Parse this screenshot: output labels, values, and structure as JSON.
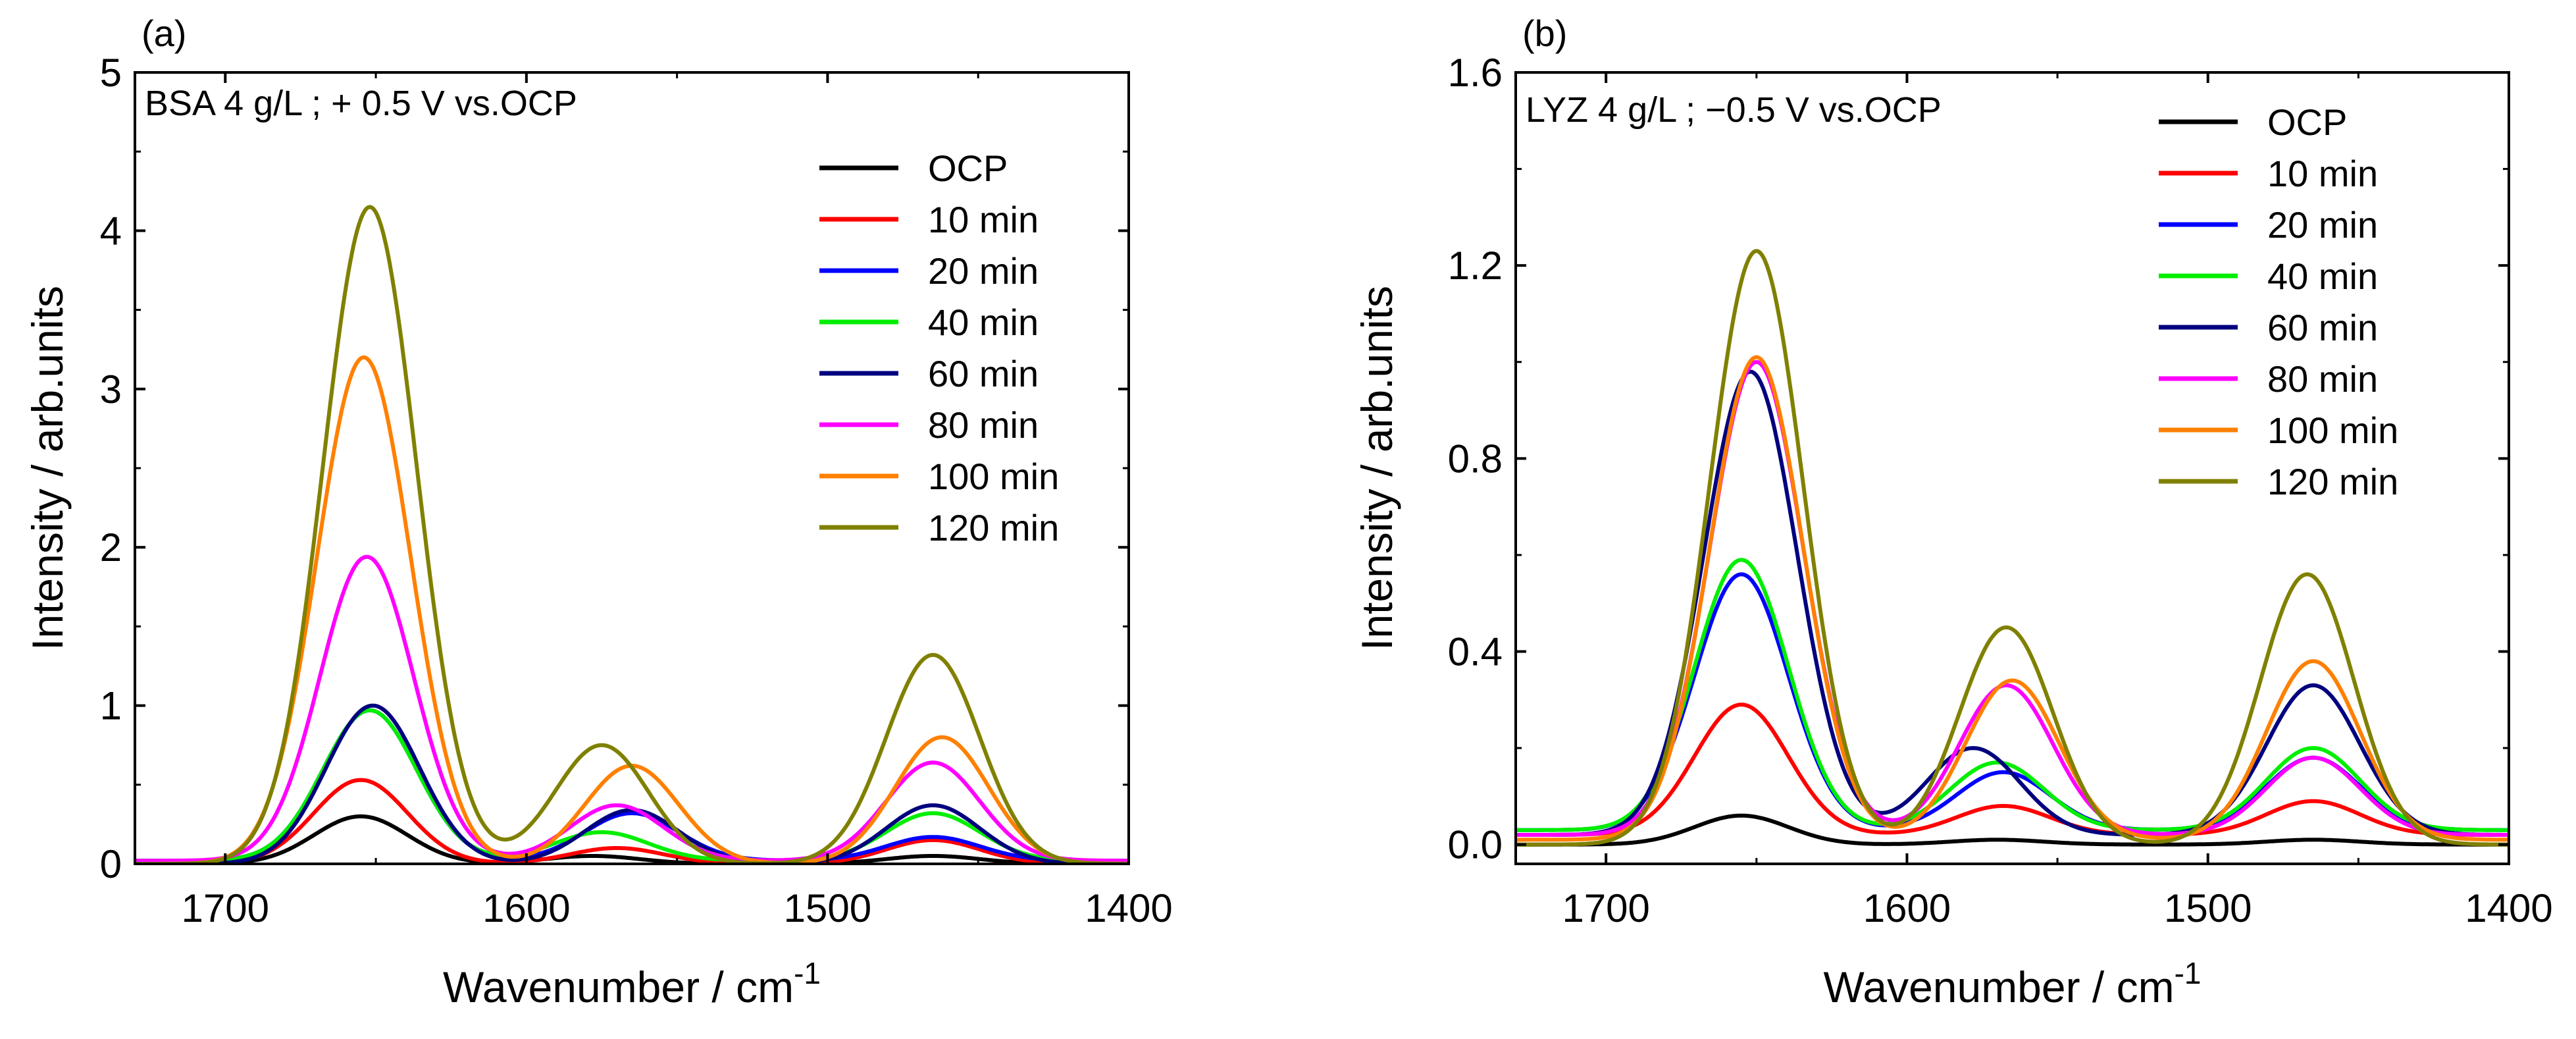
{
  "chart_data": [
    {
      "panel_label": "(a)",
      "type": "line",
      "annotation": "BSA 4 g/L ; + 0.5 V vs.OCP",
      "xlabel_main": "Wavenumber / cm",
      "xlabel_sup": "-1",
      "ylabel": "Intensity / arb.units",
      "xlim": [
        1730,
        1400
      ],
      "ylim": [
        0,
        5
      ],
      "xticks": [
        1700,
        1600,
        1500,
        1400
      ],
      "yticks": [
        0,
        1,
        2,
        3,
        4,
        5
      ],
      "yticks_labels": [
        "0",
        "1",
        "2",
        "3",
        "4",
        "5"
      ],
      "legend_position": "top-right",
      "peak_width": 22,
      "series": [
        {
          "name": "OCP",
          "color": "#000000",
          "baseline": 0.0,
          "peaks": [
            [
              1655,
              0.3
            ],
            [
              1578,
              0.05
            ],
            [
              1465,
              0.05
            ]
          ]
        },
        {
          "name": "10 min",
          "color": "#ff0000",
          "baseline": 0.0,
          "peaks": [
            [
              1655,
              0.53
            ],
            [
              1570,
              0.1
            ],
            [
              1465,
              0.15
            ]
          ]
        },
        {
          "name": "20 min",
          "color": "#0000ff",
          "baseline": 0.02,
          "peaks": [
            [
              1652,
              0.95
            ],
            [
              1565,
              0.3
            ],
            [
              1465,
              0.15
            ]
          ]
        },
        {
          "name": "40 min",
          "color": "#00ee00",
          "baseline": 0.02,
          "peaks": [
            [
              1652,
              0.95
            ],
            [
              1575,
              0.18
            ],
            [
              1465,
              0.3
            ]
          ]
        },
        {
          "name": "60 min",
          "color": "#00007f",
          "baseline": 0.0,
          "peaks": [
            [
              1651,
              1.0
            ],
            [
              1565,
              0.34
            ],
            [
              1465,
              0.37
            ]
          ]
        },
        {
          "name": "80 min",
          "color": "#ff00ff",
          "baseline": 0.02,
          "peaks": [
            [
              1653,
              1.92
            ],
            [
              1570,
              0.35
            ],
            [
              1465,
              0.62
            ]
          ]
        },
        {
          "name": "100 min",
          "color": "#ff8000",
          "baseline": 0.0,
          "peaks": [
            [
              1654,
              3.2
            ],
            [
              1565,
              0.62
            ],
            [
              1462,
              0.8
            ]
          ]
        },
        {
          "name": "120 min",
          "color": "#808000",
          "baseline": 0.0,
          "peaks": [
            [
              1652,
              4.15
            ],
            [
              1575,
              0.75
            ],
            [
              1465,
              1.32
            ]
          ]
        }
      ]
    },
    {
      "panel_label": "(b)",
      "type": "line",
      "annotation": "LYZ 4 g/L ; −0.5 V vs.OCP",
      "xlabel_main": "Wavenumber / cm",
      "xlabel_sup": "-1",
      "ylabel": "Intensity / arb.units",
      "xlim": [
        1730,
        1400
      ],
      "ylim": [
        -0.04,
        1.6
      ],
      "xticks": [
        1700,
        1600,
        1500,
        1400
      ],
      "yticks": [
        0.0,
        0.4,
        0.8,
        1.2,
        1.6
      ],
      "yticks_labels": [
        "0.0",
        "0.4",
        "0.8",
        "1.2",
        "1.6"
      ],
      "legend_position": "top-right",
      "peak_width": 22,
      "series": [
        {
          "name": "OCP",
          "color": "#000000",
          "baseline": 0.0,
          "peaks": [
            [
              1655,
              0.06
            ],
            [
              1570,
              0.01
            ],
            [
              1465,
              0.01
            ]
          ]
        },
        {
          "name": "10 min",
          "color": "#ff0000",
          "baseline": 0.02,
          "peaks": [
            [
              1655,
              0.27
            ],
            [
              1568,
              0.06
            ],
            [
              1465,
              0.07
            ]
          ]
        },
        {
          "name": "20 min",
          "color": "#0000ff",
          "baseline": 0.03,
          "peaks": [
            [
              1655,
              0.53
            ],
            [
              1568,
              0.12
            ],
            [
              1465,
              0.15
            ]
          ]
        },
        {
          "name": "40 min",
          "color": "#00ee00",
          "baseline": 0.03,
          "peaks": [
            [
              1655,
              0.56
            ],
            [
              1570,
              0.14
            ],
            [
              1465,
              0.17
            ]
          ]
        },
        {
          "name": "60 min",
          "color": "#00007f",
          "baseline": 0.02,
          "peaks": [
            [
              1652,
              0.96
            ],
            [
              1578,
              0.18
            ],
            [
              1465,
              0.31
            ]
          ]
        },
        {
          "name": "80 min",
          "color": "#ff00ff",
          "baseline": 0.02,
          "peaks": [
            [
              1650,
              0.98
            ],
            [
              1567,
              0.31
            ],
            [
              1465,
              0.16
            ]
          ]
        },
        {
          "name": "100 min",
          "color": "#ff8000",
          "baseline": 0.01,
          "peaks": [
            [
              1650,
              1.0
            ],
            [
              1565,
              0.33
            ],
            [
              1465,
              0.37
            ]
          ]
        },
        {
          "name": "120 min",
          "color": "#808000",
          "baseline": 0.0,
          "peaks": [
            [
              1650,
              1.23
            ],
            [
              1567,
              0.45
            ],
            [
              1467,
              0.56
            ]
          ]
        }
      ]
    }
  ]
}
